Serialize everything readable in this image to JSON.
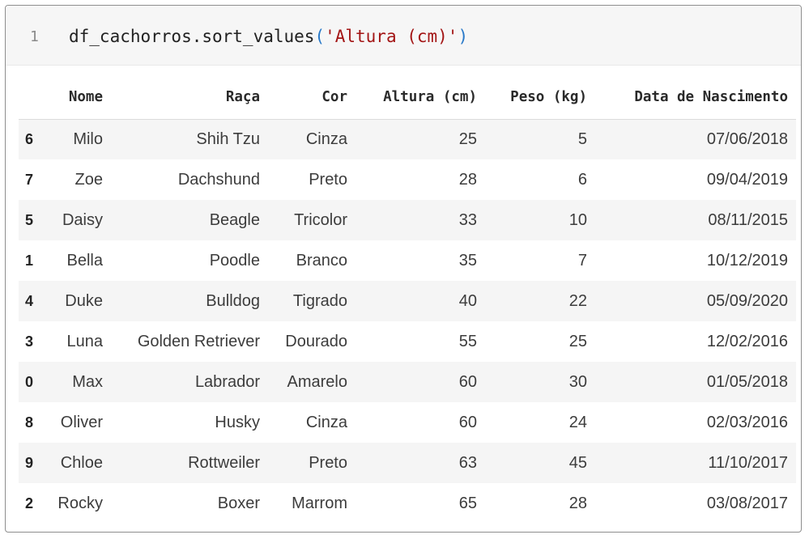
{
  "code_cell": {
    "line_number": "1",
    "code_prefix": "df_cachorros.sort_values",
    "open_paren": "(",
    "string_arg": "'Altura (cm)'",
    "close_paren": ")"
  },
  "table": {
    "columns": [
      "",
      "Nome",
      "Raça",
      "Cor",
      "Altura (cm)",
      "Peso (kg)",
      "Data de Nascimento"
    ],
    "rows": [
      [
        "6",
        "Milo",
        "Shih Tzu",
        "Cinza",
        "25",
        "5",
        "07/06/2018"
      ],
      [
        "7",
        "Zoe",
        "Dachshund",
        "Preto",
        "28",
        "6",
        "09/04/2019"
      ],
      [
        "5",
        "Daisy",
        "Beagle",
        "Tricolor",
        "33",
        "10",
        "08/11/2015"
      ],
      [
        "1",
        "Bella",
        "Poodle",
        "Branco",
        "35",
        "7",
        "10/12/2019"
      ],
      [
        "4",
        "Duke",
        "Bulldog",
        "Tigrado",
        "40",
        "22",
        "05/09/2020"
      ],
      [
        "3",
        "Luna",
        "Golden Retriever",
        "Dourado",
        "55",
        "25",
        "12/02/2016"
      ],
      [
        "0",
        "Max",
        "Labrador",
        "Amarelo",
        "60",
        "30",
        "01/05/2018"
      ],
      [
        "8",
        "Oliver",
        "Husky",
        "Cinza",
        "60",
        "24",
        "02/03/2016"
      ],
      [
        "9",
        "Chloe",
        "Rottweiler",
        "Preto",
        "63",
        "45",
        "11/10/2017"
      ],
      [
        "2",
        "Rocky",
        "Boxer",
        "Marrom",
        "65",
        "28",
        "03/08/2017"
      ]
    ]
  }
}
